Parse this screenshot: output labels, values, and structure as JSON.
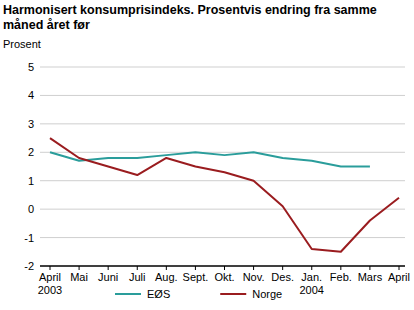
{
  "chart_data": {
    "type": "line",
    "title": "Harmonisert konsumprisindeks. Prosentvis endring fra samme måned året før",
    "y_label": "Prosent",
    "categories": [
      "April 2003",
      "Mai",
      "Juni",
      "Juli",
      "Aug.",
      "Sept.",
      "Okt.",
      "Nov.",
      "Des.",
      "Jan. 2004",
      "Feb.",
      "Mars",
      "April"
    ],
    "series": [
      {
        "name": "EØS",
        "color": "#2a9d9b",
        "values": [
          2.0,
          1.7,
          1.8,
          1.8,
          1.9,
          2.0,
          1.9,
          2.0,
          1.8,
          1.7,
          1.5,
          1.5,
          null
        ]
      },
      {
        "name": "Norge",
        "color": "#9a1c1f",
        "values": [
          2.5,
          1.8,
          1.5,
          1.2,
          1.8,
          1.5,
          1.3,
          1.0,
          0.1,
          -1.4,
          -1.5,
          -0.4,
          0.4
        ]
      }
    ],
    "ylim": [
      -2,
      5
    ],
    "yticks": [
      -2,
      -1,
      0,
      1,
      2,
      3,
      4,
      5
    ],
    "grid": true,
    "legend": "bottom"
  }
}
